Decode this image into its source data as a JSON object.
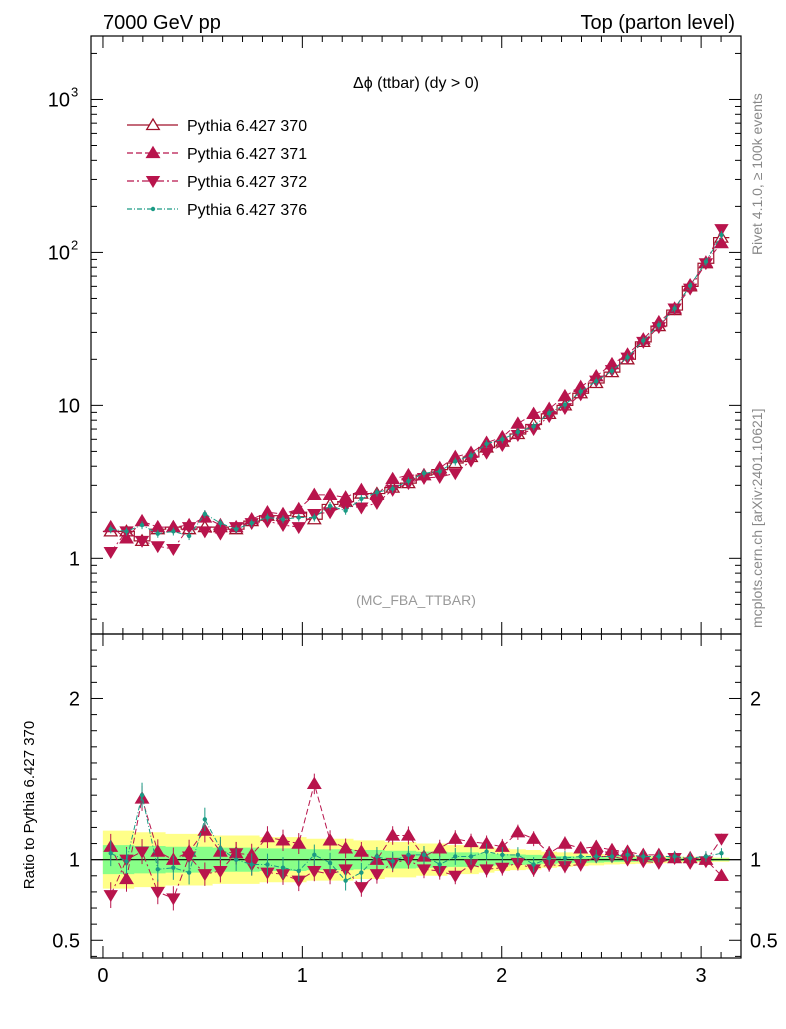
{
  "header": {
    "left": "7000 GeV pp",
    "right": "Top (parton level)"
  },
  "side_labels": {
    "rivet": "Rivet 4.1.0, ≥ 100k events",
    "mcplots": "mcplots.cern.ch [arXiv:2401.10621]"
  },
  "chart_data": [
    {
      "type": "line",
      "panel": "main",
      "title": "Δϕ (ttbar) (dy > 0)",
      "watermark": "(MC_FBA_TTBAR)",
      "yscale": "log",
      "xlim": [
        -0.06,
        3.2
      ],
      "ylim": [
        0.32,
        2600
      ],
      "xlabel": "",
      "ylabel": "",
      "yticks": [
        {
          "value": 1,
          "label": "1"
        },
        {
          "value": 10,
          "label": "10"
        },
        {
          "value": 100,
          "label": "10",
          "sup": "2"
        },
        {
          "value": 1000,
          "label": "10",
          "sup": "3"
        }
      ],
      "x": [
        0.039,
        0.118,
        0.196,
        0.275,
        0.353,
        0.432,
        0.511,
        0.589,
        0.668,
        0.746,
        0.825,
        0.903,
        0.982,
        1.06,
        1.139,
        1.217,
        1.296,
        1.374,
        1.453,
        1.532,
        1.61,
        1.689,
        1.767,
        1.846,
        1.924,
        2.003,
        2.081,
        2.16,
        2.238,
        2.317,
        2.396,
        2.474,
        2.553,
        2.631,
        2.71,
        2.788,
        2.867,
        2.945,
        3.024,
        3.102
      ],
      "series": [
        {
          "name": "Pythia 6.427 370",
          "color": "#a0122b",
          "marker": "triangle-up-open",
          "dash": "",
          "values": [
            1.5,
            1.5,
            1.3,
            1.55,
            1.6,
            1.55,
            1.6,
            1.6,
            1.55,
            1.75,
            1.9,
            1.9,
            2.0,
            1.8,
            2.25,
            2.35,
            2.65,
            2.65,
            2.9,
            3.1,
            3.5,
            3.8,
            4.2,
            4.6,
            5.3,
            5.8,
            6.5,
            7.5,
            8.8,
            10.0,
            12.0,
            14.0,
            16.5,
            20.0,
            26.0,
            33.0,
            42.0,
            60.0,
            85.0,
            125.0
          ]
        },
        {
          "name": "Pythia 6.427 371",
          "color": "#b8144c",
          "marker": "triangle-up",
          "dash": "6,3",
          "values": [
            1.6,
            1.35,
            1.75,
            1.6,
            1.6,
            1.65,
            1.85,
            1.65,
            1.6,
            1.8,
            2.0,
            1.95,
            2.1,
            2.6,
            2.6,
            2.5,
            2.8,
            2.6,
            3.3,
            3.5,
            3.5,
            3.9,
            4.6,
            4.9,
            5.7,
            6.2,
            7.6,
            8.8,
            9.5,
            11.5,
            13.2,
            15.5,
            18.6,
            21.5,
            27.0,
            35.0,
            43.0,
            61.0,
            86.0,
            115.0
          ]
        },
        {
          "name": "Pythia 6.427 372",
          "color": "#b8144c",
          "marker": "triangle-down",
          "dash": "7,3,2,3",
          "values": [
            1.1,
            1.5,
            1.3,
            1.2,
            1.15,
            1.6,
            1.5,
            1.45,
            1.6,
            1.7,
            1.75,
            1.65,
            1.6,
            1.95,
            2.0,
            2.2,
            2.15,
            2.3,
            2.8,
            3.1,
            3.35,
            3.4,
            3.6,
            4.35,
            4.9,
            5.5,
            6.4,
            7.0,
            8.5,
            9.6,
            11.8,
            14.5,
            17.0,
            20.5,
            26.0,
            32.5,
            43.0,
            58.0,
            85.0,
            142.0
          ]
        },
        {
          "name": "Pythia 6.427 376",
          "color": "#1a9a84",
          "marker": "dot",
          "dash": "5,2,1,2",
          "values": [
            1.55,
            1.5,
            1.65,
            1.45,
            1.5,
            1.4,
            1.95,
            1.7,
            1.55,
            1.7,
            1.85,
            1.8,
            1.85,
            1.85,
            2.2,
            2.05,
            2.45,
            2.7,
            2.85,
            3.2,
            3.6,
            3.7,
            4.3,
            4.7,
            5.6,
            6.0,
            6.7,
            7.3,
            8.9,
            10.1,
            12.3,
            14.4,
            16.8,
            20.6,
            26.5,
            33.5,
            43.0,
            60.5,
            87.0,
            130.0
          ]
        }
      ]
    },
    {
      "type": "line",
      "panel": "ratio",
      "ylabel": "Ratio to Pythia 6.427 370",
      "xlim": [
        -0.06,
        3.2
      ],
      "ylim": [
        0.39,
        2.4
      ],
      "yticks": [
        {
          "value": 0.5,
          "label": "0.5"
        },
        {
          "value": 1,
          "label": "1"
        },
        {
          "value": 2,
          "label": "2"
        }
      ],
      "xticks": [
        {
          "value": 0,
          "label": "0"
        },
        {
          "value": 1,
          "label": "1"
        },
        {
          "value": 2,
          "label": "2"
        },
        {
          "value": 3,
          "label": "3"
        }
      ],
      "band_yellow": [
        0.18,
        0.18,
        0.17,
        0.17,
        0.16,
        0.16,
        0.16,
        0.15,
        0.15,
        0.15,
        0.14,
        0.14,
        0.14,
        0.13,
        0.13,
        0.13,
        0.12,
        0.12,
        0.11,
        0.11,
        0.1,
        0.1,
        0.09,
        0.09,
        0.08,
        0.07,
        0.065,
        0.06,
        0.05,
        0.045,
        0.04,
        0.035,
        0.03,
        0.028,
        0.025,
        0.022,
        0.02,
        0.018,
        0.015,
        0.013
      ],
      "band_green": [
        0.09,
        0.09,
        0.085,
        0.085,
        0.08,
        0.08,
        0.08,
        0.075,
        0.075,
        0.075,
        0.07,
        0.07,
        0.07,
        0.065,
        0.065,
        0.065,
        0.06,
        0.06,
        0.055,
        0.055,
        0.05,
        0.05,
        0.045,
        0.045,
        0.04,
        0.035,
        0.032,
        0.03,
        0.025,
        0.022,
        0.02,
        0.018,
        0.015,
        0.014,
        0.012,
        0.011,
        0.01,
        0.009,
        0.008,
        0.007
      ],
      "series": [
        {
          "name": "Pythia 6.427 371",
          "color": "#b8144c",
          "marker": "triangle-up",
          "dash": "6,3",
          "values": [
            1.08,
            0.88,
            1.38,
            1.05,
            1.0,
            1.05,
            1.18,
            1.05,
            1.04,
            1.03,
            1.14,
            1.12,
            1.1,
            1.47,
            1.12,
            1.07,
            1.05,
            1.0,
            1.15,
            1.15,
            1.02,
            1.07,
            1.13,
            1.11,
            1.1,
            1.08,
            1.17,
            1.13,
            1.04,
            1.1,
            1.07,
            1.08,
            1.06,
            1.05,
            1.03,
            1.03,
            1.01,
            1.01,
            1.0,
            0.9
          ]
        },
        {
          "name": "Pythia 6.427 372",
          "color": "#b8144c",
          "marker": "triangle-down",
          "dash": "7,3,2,3",
          "values": [
            0.78,
            1.0,
            1.05,
            0.8,
            0.76,
            1.02,
            0.91,
            0.93,
            1.04,
            0.97,
            0.92,
            0.91,
            0.87,
            0.93,
            0.91,
            0.94,
            0.83,
            0.91,
            0.98,
            1.0,
            0.94,
            0.93,
            0.9,
            0.97,
            0.94,
            0.95,
            0.98,
            0.94,
            0.97,
            0.96,
            0.97,
            1.02,
            1.02,
            1.0,
            0.99,
            0.98,
            1.01,
            0.98,
            0.99,
            1.13
          ]
        },
        {
          "name": "Pythia 6.427 376",
          "color": "#1a9a84",
          "marker": "dot",
          "dash": "5,2,1,2",
          "values": [
            1.04,
            0.99,
            1.4,
            0.94,
            0.95,
            0.92,
            1.25,
            1.07,
            1.0,
            0.97,
            0.97,
            0.95,
            0.93,
            1.03,
            0.98,
            0.87,
            0.92,
            1.02,
            0.99,
            1.03,
            1.03,
            0.97,
            1.02,
            1.02,
            1.05,
            1.03,
            1.03,
            0.97,
            1.01,
            1.01,
            1.02,
            1.02,
            1.02,
            1.03,
            1.02,
            1.02,
            1.02,
            1.01,
            1.02,
            1.04
          ]
        }
      ]
    }
  ]
}
